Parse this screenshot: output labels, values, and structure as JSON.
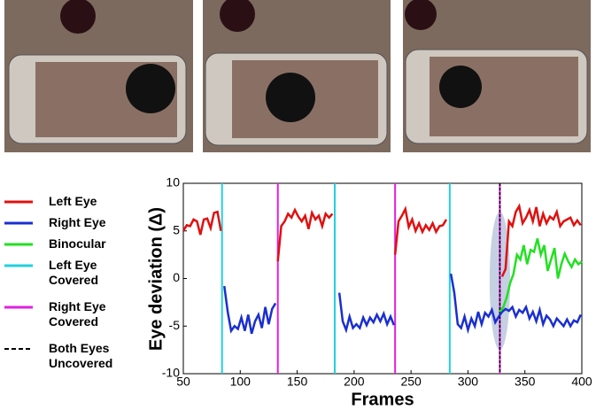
{
  "chart_data": {
    "type": "line",
    "xlabel": "Frames",
    "ylabel": "Eye deviation (Δ)",
    "xlim": [
      50,
      400
    ],
    "xticks": [
      50,
      100,
      150,
      200,
      250,
      300,
      350,
      400
    ],
    "ylim": [
      -10,
      10
    ],
    "yticks": [
      -10,
      -5,
      0,
      5,
      10
    ],
    "series": [
      {
        "name": "Left Eye",
        "color": "#e01010",
        "x": [
          50,
          53,
          56,
          59,
          62,
          65,
          68,
          71,
          74,
          77,
          80,
          83,
          85,
          133,
          136,
          139,
          142,
          145,
          148,
          151,
          154,
          157,
          160,
          163,
          166,
          169,
          172,
          175,
          178,
          181,
          184,
          236,
          239,
          242,
          245,
          248,
          251,
          254,
          257,
          260,
          263,
          266,
          269,
          272,
          275,
          278,
          281,
          284,
          330,
          333,
          336,
          339,
          342,
          345,
          348,
          351,
          354,
          357,
          360,
          363,
          366,
          369,
          372,
          375,
          378,
          381,
          384,
          387,
          390,
          393,
          396,
          399
        ],
        "values": [
          5.0,
          5.6,
          5.5,
          6.2,
          6.0,
          4.6,
          6.2,
          6.3,
          5.3,
          6.9,
          7.0,
          5.0,
          null,
          1.8,
          5.5,
          6.0,
          6.8,
          6.4,
          7.2,
          6.5,
          6.0,
          6.6,
          5.2,
          6.9,
          6.2,
          6.6,
          5.5,
          6.8,
          6.4,
          6.8,
          null,
          2.5,
          6.0,
          6.6,
          7.3,
          5.4,
          6.2,
          5.0,
          5.8,
          4.9,
          5.6,
          5.1,
          5.8,
          4.9,
          5.5,
          5.6,
          6.2,
          null,
          0.2,
          1.0,
          6.0,
          5.5,
          7.0,
          7.6,
          5.8,
          6.4,
          7.2,
          6.0,
          7.5,
          5.5,
          6.8,
          5.8,
          6.5,
          6.2,
          7.0,
          5.5,
          6.0,
          6.2,
          6.4,
          5.6,
          6.1,
          5.6
        ]
      },
      {
        "name": "Right Eye",
        "color": "#1a2fd0",
        "x": [
          86,
          89,
          92,
          95,
          98,
          101,
          104,
          107,
          110,
          113,
          116,
          119,
          122,
          125,
          128,
          131,
          134,
          187,
          190,
          193,
          196,
          199,
          202,
          205,
          208,
          211,
          214,
          217,
          220,
          223,
          226,
          229,
          232,
          235,
          237,
          285,
          288,
          291,
          294,
          297,
          300,
          303,
          306,
          309,
          312,
          315,
          318,
          321,
          324,
          327,
          330,
          333,
          336,
          339,
          342,
          345,
          348,
          351,
          354,
          357,
          360,
          363,
          366,
          369,
          372,
          375,
          378,
          381,
          384,
          387,
          390,
          393,
          396,
          399
        ],
        "values": [
          -0.8,
          -3.5,
          -5.5,
          -5.0,
          -5.3,
          -4.1,
          -5.5,
          -3.8,
          -5.8,
          -4.5,
          -3.8,
          -5.2,
          -3.0,
          -4.8,
          -3.2,
          -2.6,
          null,
          -1.5,
          -4.5,
          -5.4,
          -4.0,
          -5.2,
          -4.8,
          -5.2,
          -4.1,
          -4.9,
          -4.1,
          -4.6,
          -3.8,
          -4.5,
          -3.7,
          -4.8,
          -4.0,
          -4.9,
          null,
          0.5,
          -1.5,
          -4.8,
          -5.2,
          -4.0,
          -5.4,
          -4.2,
          -5.0,
          -3.5,
          -4.8,
          -3.6,
          -4.0,
          -3.3,
          -4.6,
          -4.0,
          -3.5,
          -3.2,
          -3.4,
          -3.0,
          -4.0,
          -3.3,
          -3.6,
          -3.0,
          -4.2,
          -3.5,
          -4.5,
          -3.3,
          -4.8,
          -3.9,
          -4.3,
          -5.0,
          -4.2,
          -4.6,
          -5.0,
          -4.3,
          -5.0,
          -4.4,
          -4.6,
          -3.8
        ]
      },
      {
        "name": "Binocular",
        "color": "#22e022",
        "x": [
          328,
          331,
          334,
          337,
          340,
          343,
          346,
          349,
          352,
          355,
          358,
          361,
          364,
          367,
          370,
          373,
          376,
          379,
          382,
          385,
          388,
          391,
          394,
          397,
          400
        ],
        "values": [
          -3.5,
          -3.0,
          -2.0,
          -0.5,
          0.5,
          2.5,
          2.0,
          3.5,
          1.5,
          3.0,
          2.8,
          4.2,
          2.5,
          3.5,
          0.8,
          2.0,
          3.2,
          0.0,
          1.5,
          2.6,
          1.8,
          1.2,
          2.0,
          1.5,
          1.8
        ]
      }
    ],
    "markers": [
      {
        "name": "Left Eye Covered",
        "color": "#22d0e0",
        "x": [
          84,
          183,
          284
        ]
      },
      {
        "name": "Right Eye Covered",
        "color": "#e020e0",
        "x": [
          133,
          236,
          328
        ]
      },
      {
        "name": "Both Eyes Uncovered",
        "color": "#000000",
        "dashed": true,
        "x": [
          328
        ]
      }
    ],
    "highlight": {
      "x": [
        319,
        337
      ],
      "y": [
        -7.5,
        7
      ]
    }
  }
}
